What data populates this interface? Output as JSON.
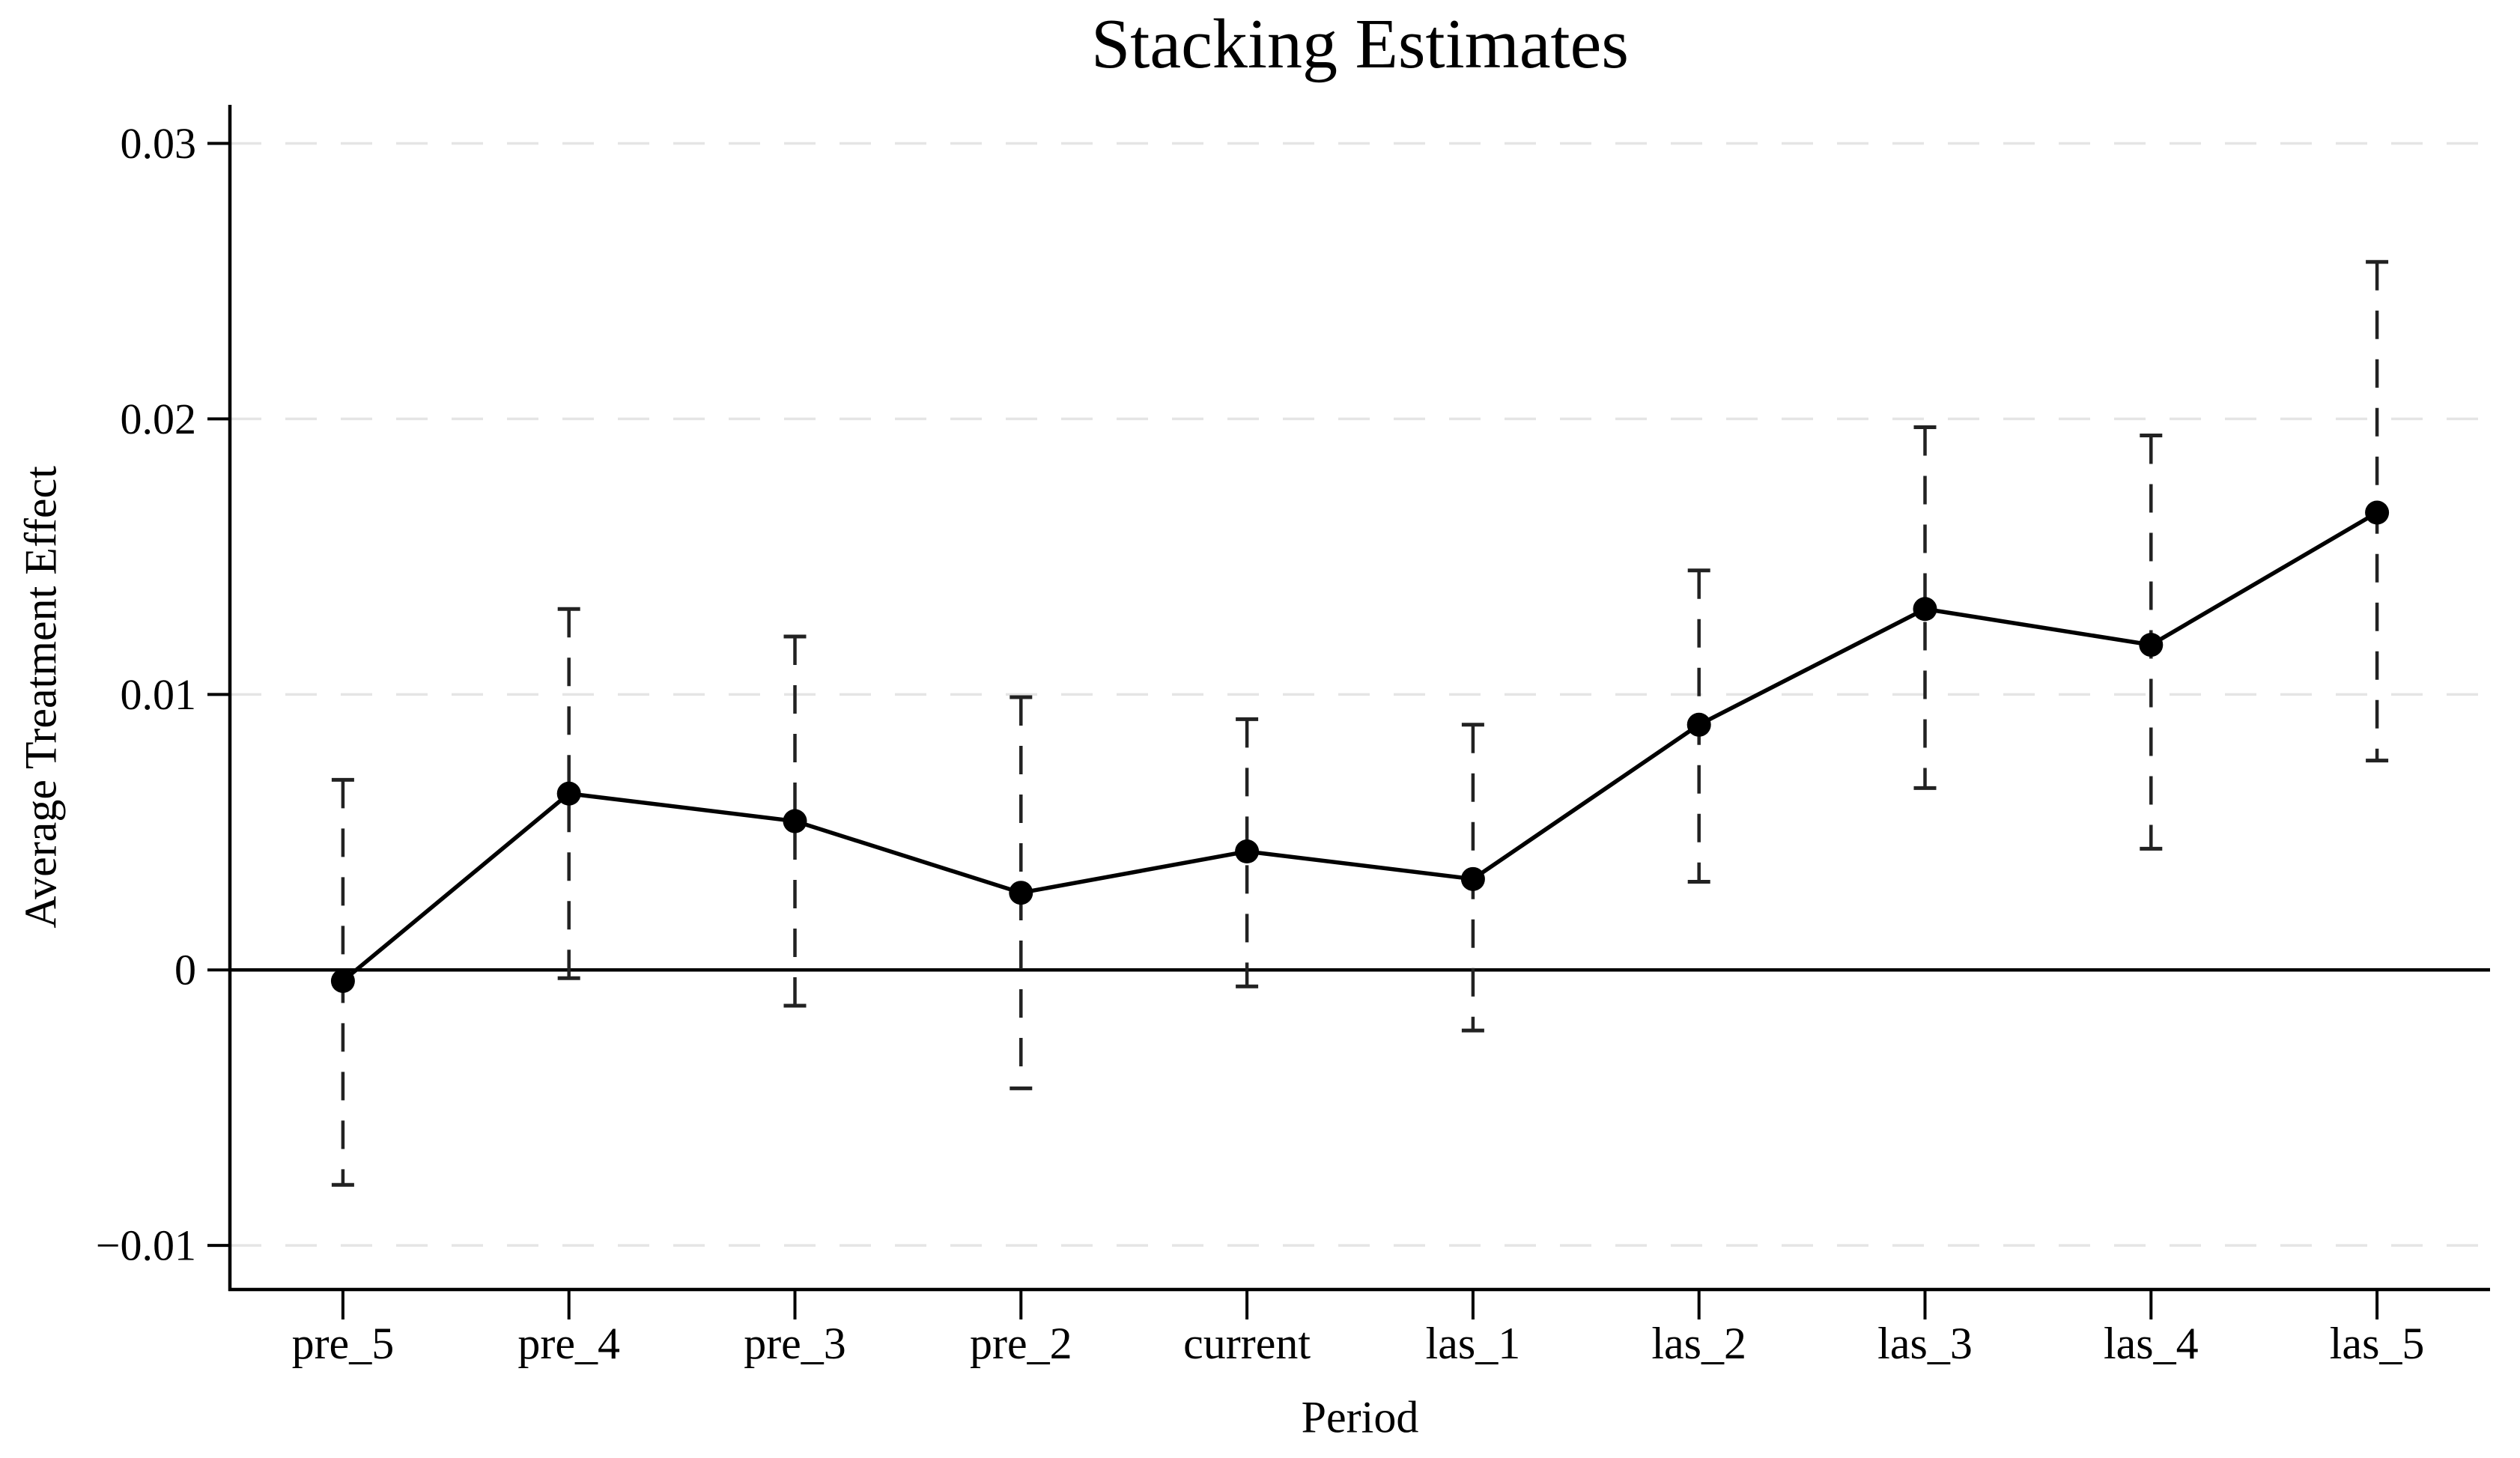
{
  "chart_data": {
    "type": "line",
    "title": "Stacking Estimates",
    "xlabel": "Period",
    "ylabel": "Average Treatment Effect",
    "categories": [
      "pre_5",
      "pre_4",
      "pre_3",
      "pre_2",
      "current",
      "las_1",
      "las_2",
      "las_3",
      "las_4",
      "las_5"
    ],
    "series": [
      {
        "name": "Average Treatment Effect",
        "values": [
          -0.0004,
          0.0064,
          0.0054,
          0.0028,
          0.0043,
          0.0033,
          0.0089,
          0.0131,
          0.0118,
          0.0166
        ]
      }
    ],
    "ci_low": [
      -0.0078,
      -0.0003,
      -0.0013,
      -0.0043,
      -0.0006,
      -0.0022,
      0.0032,
      0.0066,
      0.0044,
      0.0076
    ],
    "ci_high": [
      0.0069,
      0.0131,
      0.0121,
      0.0099,
      0.0091,
      0.0089,
      0.0145,
      0.0197,
      0.0194,
      0.0257
    ],
    "yticks": [
      0.03,
      0.02,
      0.01,
      0,
      -0.01
    ],
    "ytick_labels": [
      "0.03",
      "0.02",
      "0.01",
      "0",
      "−0.01"
    ],
    "ylim": [
      -0.0116,
      0.0314
    ],
    "grid": "horizontal-dashed-at-yticks",
    "zero_line_solid": true,
    "legend_position": "none",
    "ci_style": "dashed-vertical-with-caps",
    "marker": "filled-circle",
    "colors": {
      "line": "#000000",
      "marker": "#000000",
      "ci": "#222222",
      "grid": "#e5e5e5",
      "axis": "#000000",
      "text": "#000000",
      "background": "#ffffff"
    }
  }
}
